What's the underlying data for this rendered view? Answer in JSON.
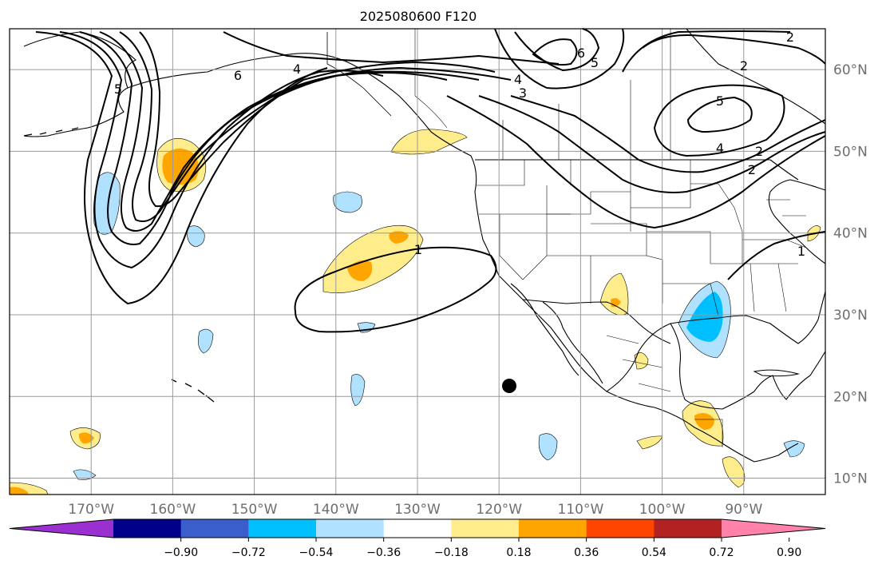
{
  "title": "2025080600 F120",
  "map": {
    "lon_ticks": [
      "170°W",
      "160°W",
      "150°W",
      "140°W",
      "130°W",
      "120°W",
      "110°W",
      "100°W",
      "90°W"
    ],
    "lat_ticks": [
      "60°N",
      "50°N",
      "40°N",
      "30°N",
      "20°N",
      "10°N"
    ],
    "lon_range": [
      -180,
      -80
    ],
    "lat_range": [
      8,
      65
    ],
    "gridlines": true,
    "contour_labels": [
      "5",
      "6",
      "4",
      "4",
      "3",
      "6",
      "5",
      "2",
      "2",
      "5",
      "4",
      "2",
      "2",
      "1",
      "1"
    ]
  },
  "colorbar": {
    "tick_labels": [
      "−0.90",
      "−0.72",
      "−0.54",
      "−0.36",
      "−0.18",
      "0.18",
      "0.36",
      "0.54",
      "0.72",
      "0.90"
    ],
    "colors": [
      "#9b30d0",
      "#00008b",
      "#3a5fcd",
      "#00bfff",
      "#b0e2ff",
      "#ffffff",
      "#ffec8b",
      "#ffa500",
      "#ff4500",
      "#b22222",
      "#ff82ab"
    ],
    "extend": "both"
  },
  "shading_colors": {
    "neg1": "#b0e2ff",
    "neg2": "#00bfff",
    "pos1": "#ffec8b",
    "pos2": "#ffa500"
  }
}
